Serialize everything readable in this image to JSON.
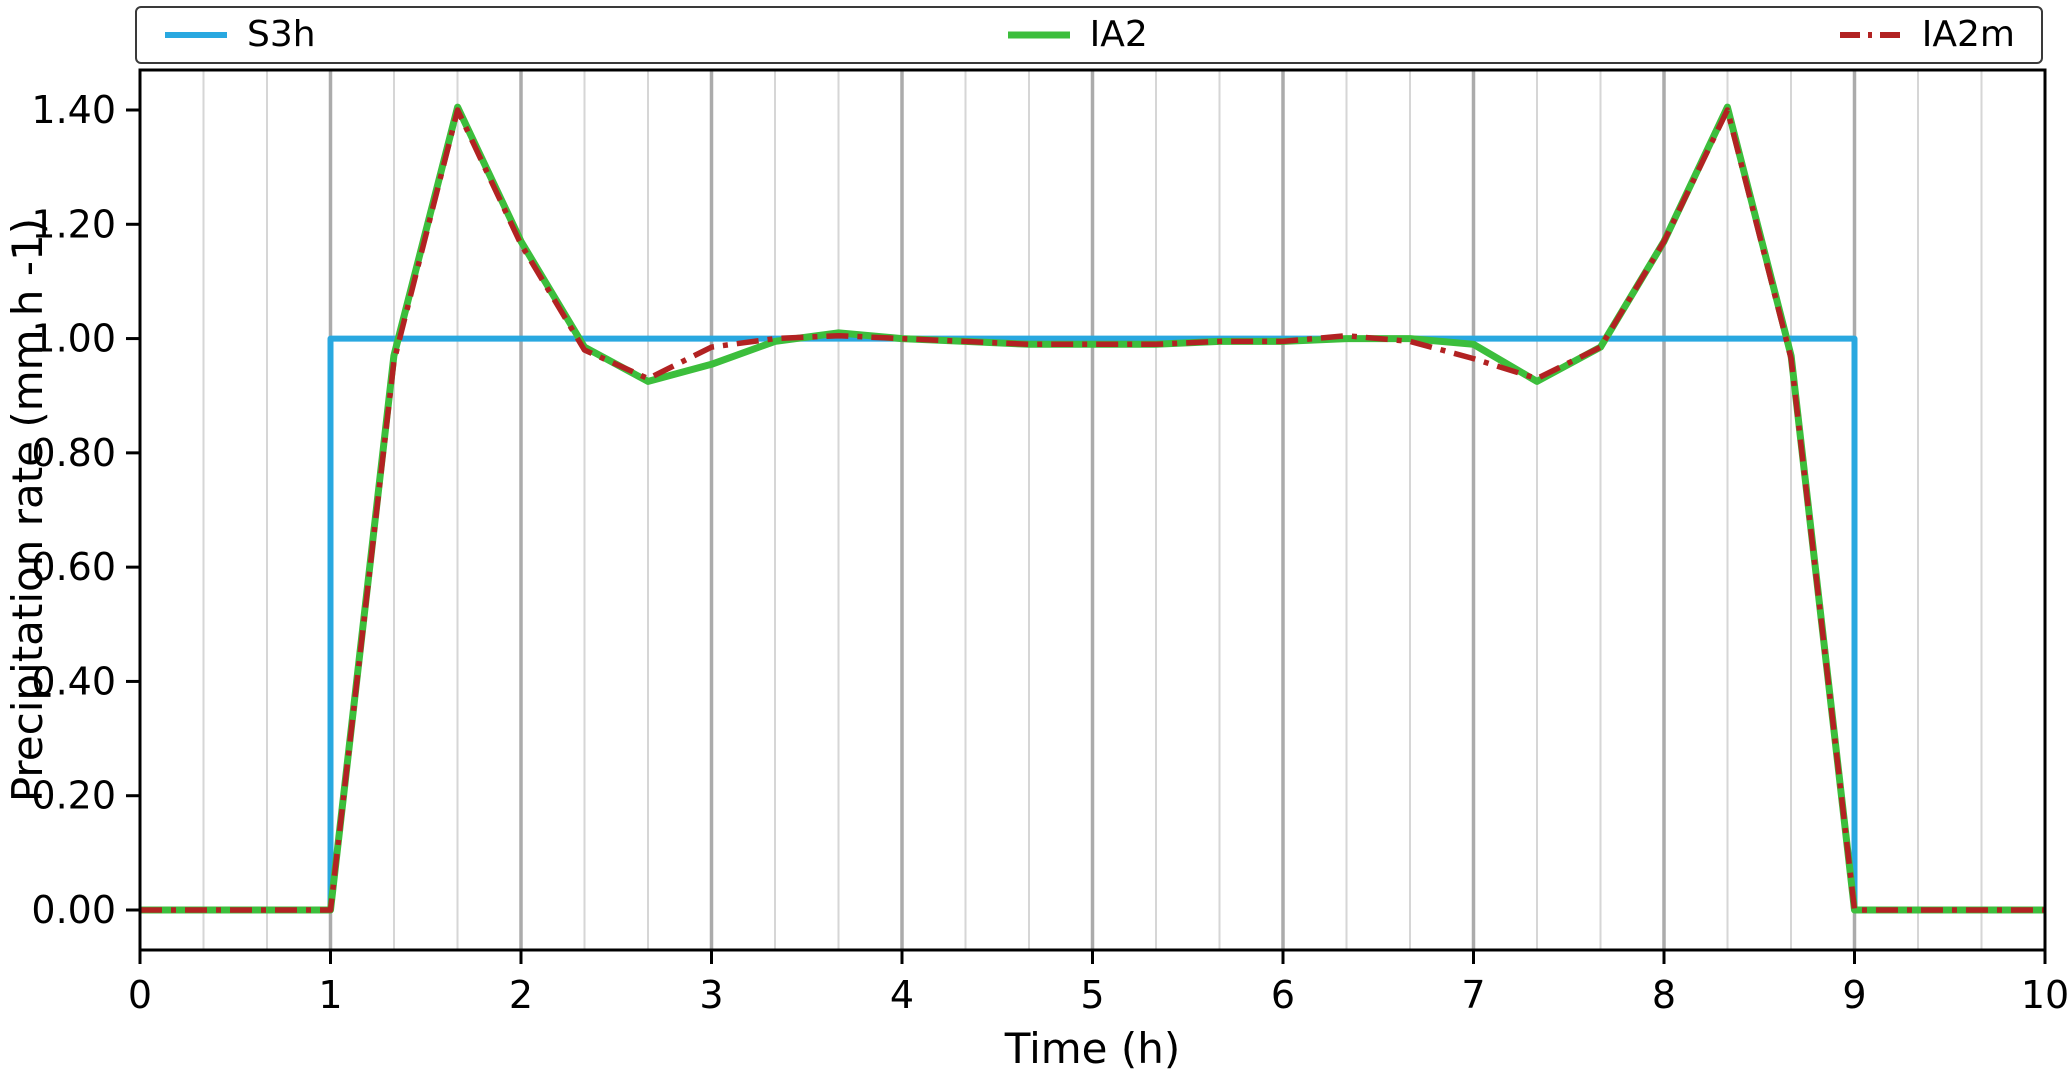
{
  "chart_data": {
    "type": "line",
    "title": "",
    "xlabel": "Time (h)",
    "ylabel": "Precipitation rate (mm h -1)",
    "xlim": [
      0,
      10
    ],
    "ylim": [
      -0.07,
      1.47
    ],
    "x_ticks": [
      0,
      1,
      2,
      3,
      4,
      5,
      6,
      7,
      8,
      9,
      10
    ],
    "x_tick_labels": [
      "0",
      "1",
      "2",
      "3",
      "4",
      "5",
      "6",
      "7",
      "8",
      "9",
      "10"
    ],
    "y_ticks": [
      0.0,
      0.2,
      0.4,
      0.6,
      0.8,
      1.0,
      1.2,
      1.4
    ],
    "y_tick_labels": [
      "0.00",
      "0.20",
      "0.40",
      "0.60",
      "0.80",
      "1.00",
      "1.20",
      "1.40"
    ],
    "grid": {
      "vertical": true,
      "horizontal": false,
      "minor_step_hours": 0.3333,
      "major_color": "#ababab",
      "minor_color": "#d6d6d6"
    },
    "legend_position": "top",
    "series": [
      {
        "name": "S3h",
        "color": "#29a8e0",
        "style": "solid",
        "width": 6,
        "x": [
          0,
          1,
          1,
          9,
          9,
          10
        ],
        "y": [
          0,
          0,
          1.0,
          1.0,
          0,
          0
        ]
      },
      {
        "name": "IA2",
        "color": "#3cbe3c",
        "style": "solid",
        "width": 7,
        "x": [
          0,
          0.333,
          0.667,
          1.0,
          1.333,
          1.667,
          2.0,
          2.333,
          2.667,
          3.0,
          3.333,
          3.667,
          4.0,
          4.333,
          4.667,
          5.0,
          5.333,
          5.667,
          6.0,
          6.333,
          6.667,
          7.0,
          7.333,
          7.667,
          8.0,
          8.333,
          8.667,
          9.0,
          9.333,
          9.667,
          10.0
        ],
        "y": [
          0,
          0,
          0,
          0,
          0.97,
          1.405,
          1.17,
          0.985,
          0.925,
          0.955,
          0.995,
          1.01,
          1.0,
          0.995,
          0.99,
          0.99,
          0.99,
          0.995,
          0.995,
          1.0,
          1.0,
          0.99,
          0.925,
          0.985,
          1.17,
          1.405,
          0.97,
          0,
          0,
          0,
          0
        ]
      },
      {
        "name": "IA2m",
        "color": "#b22222",
        "style": "dashdot",
        "width": 5.5,
        "x": [
          0,
          0.333,
          0.667,
          1.0,
          1.333,
          1.667,
          2.0,
          2.333,
          2.667,
          3.0,
          3.333,
          3.667,
          4.0,
          4.333,
          4.667,
          5.0,
          5.333,
          5.667,
          6.0,
          6.333,
          6.667,
          7.0,
          7.333,
          7.667,
          8.0,
          8.333,
          8.667,
          9.0,
          9.333,
          9.667,
          10.0
        ],
        "y": [
          0,
          0,
          0,
          0,
          0.96,
          1.4,
          1.165,
          0.98,
          0.93,
          0.985,
          1.0,
          1.005,
          1.0,
          0.995,
          0.99,
          0.99,
          0.99,
          0.995,
          0.995,
          1.005,
          0.995,
          0.965,
          0.93,
          0.985,
          1.17,
          1.4,
          0.965,
          0,
          0,
          0,
          0
        ]
      }
    ]
  }
}
